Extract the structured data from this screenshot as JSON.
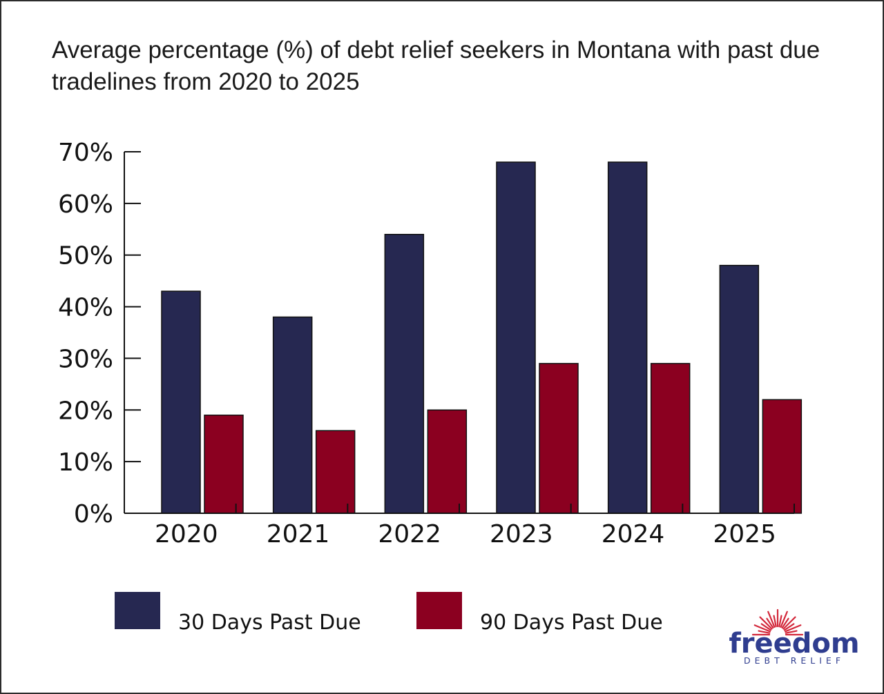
{
  "chart_data": {
    "type": "bar",
    "title": "Average percentage (%) of debt relief seekers in Montana with past due tradelines from 2020 to 2025",
    "categories": [
      "2020",
      "2021",
      "2022",
      "2023",
      "2024",
      "2025"
    ],
    "series": [
      {
        "name": "30 Days Past Due",
        "color": "#262851",
        "values": [
          43,
          38,
          54,
          68,
          68,
          48
        ]
      },
      {
        "name": "90 Days Past Due",
        "color": "#8b0020",
        "values": [
          19,
          16,
          20,
          29,
          29,
          22
        ]
      }
    ],
    "ylim": [
      0,
      70
    ],
    "yticks": [
      "0%",
      "10%",
      "20%",
      "30%",
      "40%",
      "50%",
      "60%",
      "70%"
    ],
    "xlabel": "",
    "ylabel": "",
    "grid": false,
    "legend_position": "bottom"
  },
  "logo": {
    "word": "freedom",
    "subtitle": "DEBT RELIEF",
    "word_color": "#2f3d8f",
    "sun_color": "#d3273a"
  }
}
